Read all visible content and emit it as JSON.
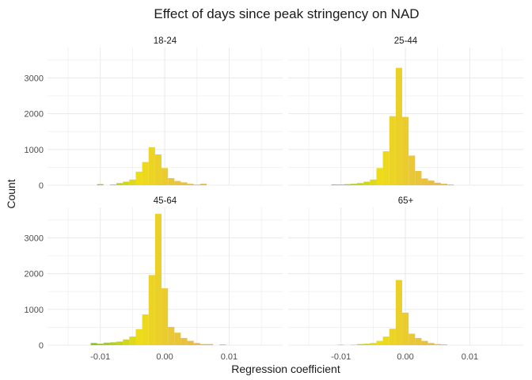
{
  "chart_data": {
    "type": "bar",
    "title": "Effect of days since peak stringency on NAD",
    "xlabel": "Regression coefficient",
    "ylabel": "Count",
    "xlim": [
      -0.0182,
      0.0183
    ],
    "ylim": [
      0,
      3850
    ],
    "x_ticks": [
      -0.01,
      0.0,
      0.01
    ],
    "x_tick_labels": [
      "-0.01",
      "0.00",
      "0.01"
    ],
    "y_ticks": [
      0,
      1000,
      2000,
      3000
    ],
    "y_tick_labels": [
      "0",
      "1000",
      "2000",
      "3000"
    ],
    "grid": true,
    "bin_width": 0.001,
    "bin_centers": [
      -0.011,
      -0.01,
      -0.009,
      -0.008,
      -0.007,
      -0.006,
      -0.005,
      -0.004,
      -0.003,
      -0.002,
      -0.001,
      0.0,
      0.001,
      0.002,
      0.003,
      0.004,
      0.005,
      0.006,
      0.007,
      0.008,
      0.009
    ],
    "colors": {
      "low": "#8bc61a",
      "mid": "#ecdc1a",
      "high": "#e8ad5a",
      "grid": "#ebebeb"
    },
    "panels": [
      {
        "label": "18-24",
        "counts": [
          0,
          30,
          0,
          20,
          60,
          100,
          160,
          380,
          650,
          1060,
          860,
          480,
          200,
          120,
          80,
          40,
          20,
          40,
          0,
          0,
          0
        ]
      },
      {
        "label": "25-44",
        "counts": [
          20,
          20,
          30,
          40,
          60,
          100,
          160,
          480,
          950,
          1930,
          3280,
          1910,
          830,
          400,
          190,
          130,
          70,
          40,
          20,
          0,
          0
        ]
      },
      {
        "label": "45-64",
        "counts": [
          60,
          40,
          70,
          80,
          100,
          160,
          240,
          450,
          860,
          1960,
          3670,
          1590,
          510,
          350,
          200,
          120,
          60,
          30,
          30,
          0,
          20
        ]
      },
      {
        "label": "65+",
        "counts": [
          0,
          10,
          0,
          10,
          30,
          40,
          60,
          120,
          240,
          460,
          1820,
          910,
          320,
          200,
          120,
          60,
          30,
          20,
          0,
          0,
          0
        ]
      }
    ]
  }
}
